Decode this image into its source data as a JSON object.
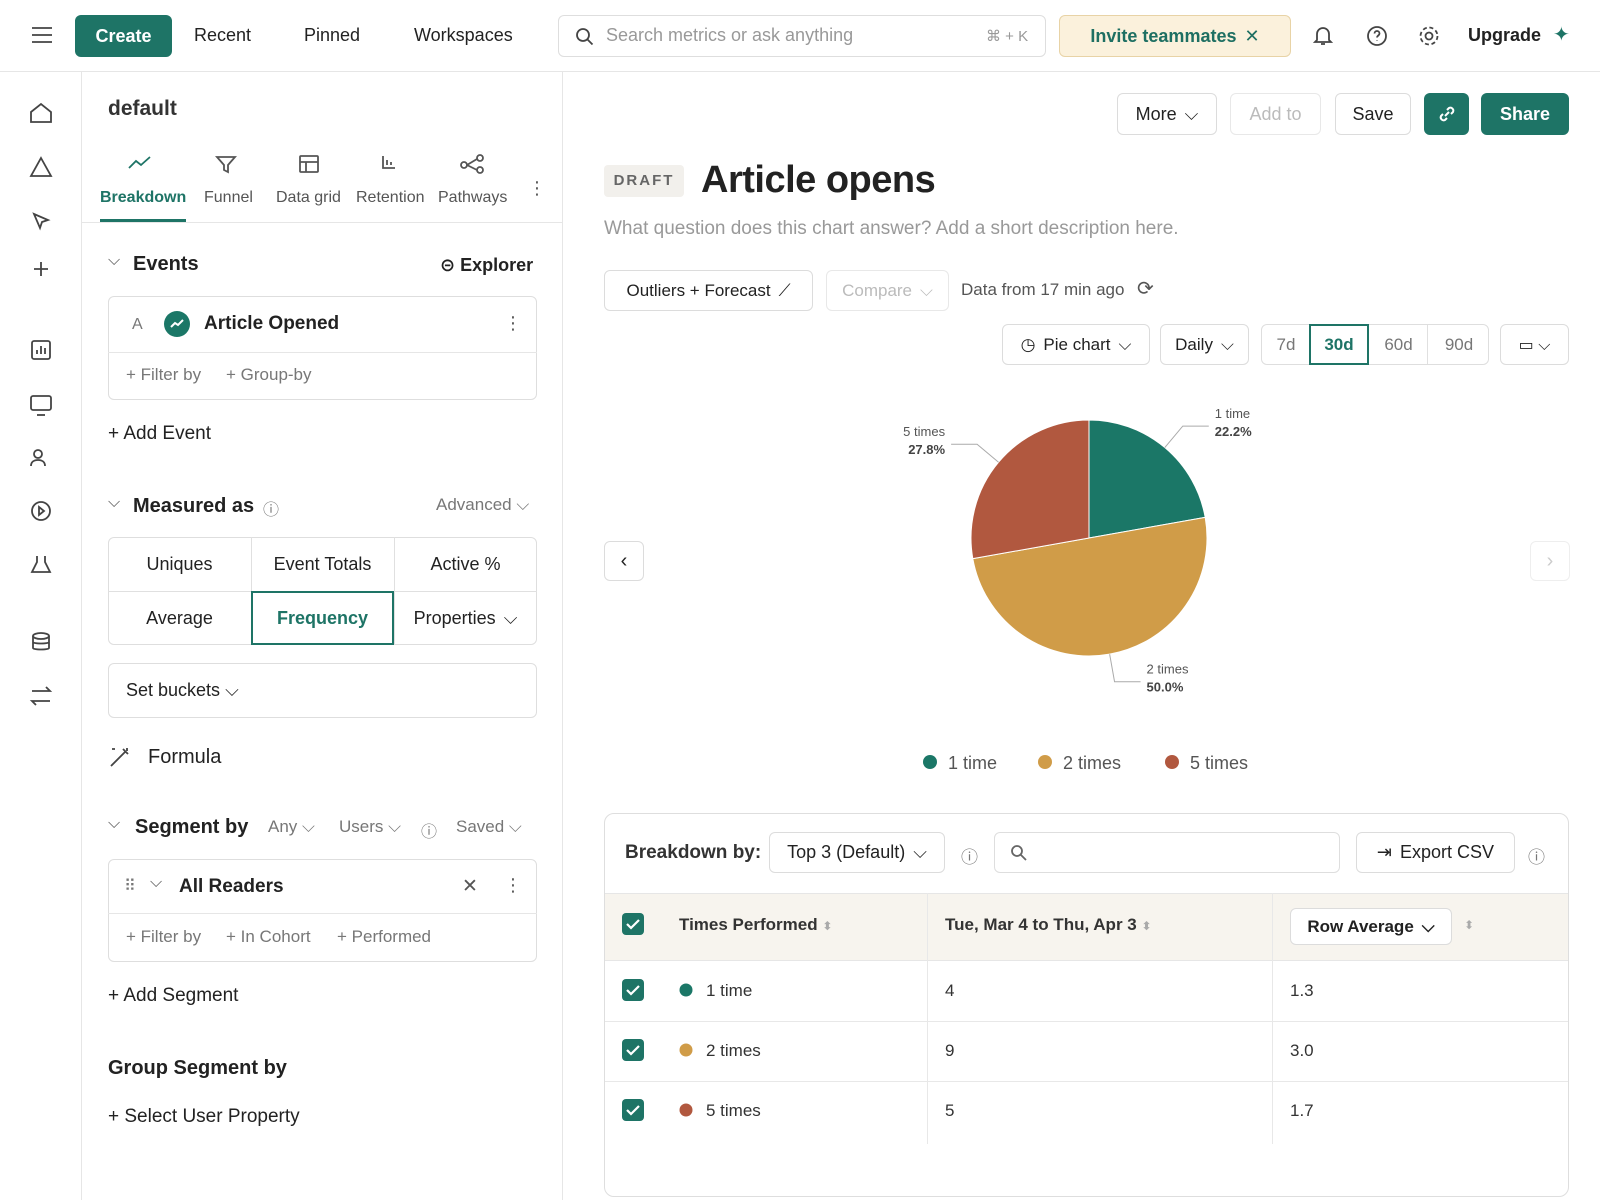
{
  "topbar": {
    "create": "Create",
    "menus": [
      "Recent",
      "Pinned",
      "Workspaces"
    ],
    "search_placeholder": "Search metrics or ask anything",
    "shortcut": "⌘ + K",
    "invite": "Invite teammates",
    "upgrade": "Upgrade"
  },
  "query": {
    "project": "default",
    "tabs": [
      "Breakdown",
      "Funnel",
      "Data grid",
      "Retention",
      "Pathways"
    ],
    "events_title": "Events",
    "explorer": "Explorer",
    "event_letter": "A",
    "event_name": "Article Opened",
    "filter_by": "+ Filter by",
    "group_by": "+ Group-by",
    "add_event": "+ Add Event",
    "measured_as": "Measured as",
    "advanced": "Advanced",
    "measures": [
      "Uniques",
      "Event Totals",
      "Active %",
      "Average",
      "Frequency",
      "Properties"
    ],
    "set_buckets": "Set buckets",
    "formula": "Formula",
    "segment_by": "Segment by",
    "segment_options": [
      "Any",
      "Users",
      "Saved"
    ],
    "segment_name": "All Readers",
    "segment_actions": [
      "+ Filter by",
      "+ In Cohort",
      "+ Performed"
    ],
    "add_segment": "+ Add Segment",
    "group_segment_by": "Group Segment by",
    "select_user_property": "+ Select User Property"
  },
  "report": {
    "actions": [
      "More",
      "Add to",
      "Save",
      "Share"
    ],
    "draft": "DRAFT",
    "title": "Article opens",
    "description": "What question does this chart answer? Add a short description here.",
    "outliers": "Outliers + Forecast",
    "compare": "Compare",
    "data_from": "Data from 17 min ago",
    "chart_type": "Pie chart",
    "interval": "Daily",
    "ranges": [
      "7d",
      "30d",
      "60d",
      "90d"
    ]
  },
  "chart_data": {
    "type": "pie",
    "categories": [
      "1 time",
      "2 times",
      "5 times"
    ],
    "values": [
      22.2,
      50.0,
      27.8
    ],
    "value_labels": [
      "22.2%",
      "50.0%",
      "27.8%"
    ],
    "colors": [
      "#1b7767",
      "#d09c48",
      "#b1583f"
    ],
    "legend": "bottom"
  },
  "table": {
    "breakdown_by": "Breakdown by:",
    "top": "Top 3 (Default)",
    "export": "Export CSV",
    "headers": [
      "Times Performed",
      "Tue, Mar 4 to Thu, Apr 3",
      "Row Average"
    ],
    "rows": [
      [
        "4",
        "1.3"
      ],
      [
        "9",
        "3.0"
      ],
      [
        "5",
        "1.7"
      ]
    ]
  }
}
